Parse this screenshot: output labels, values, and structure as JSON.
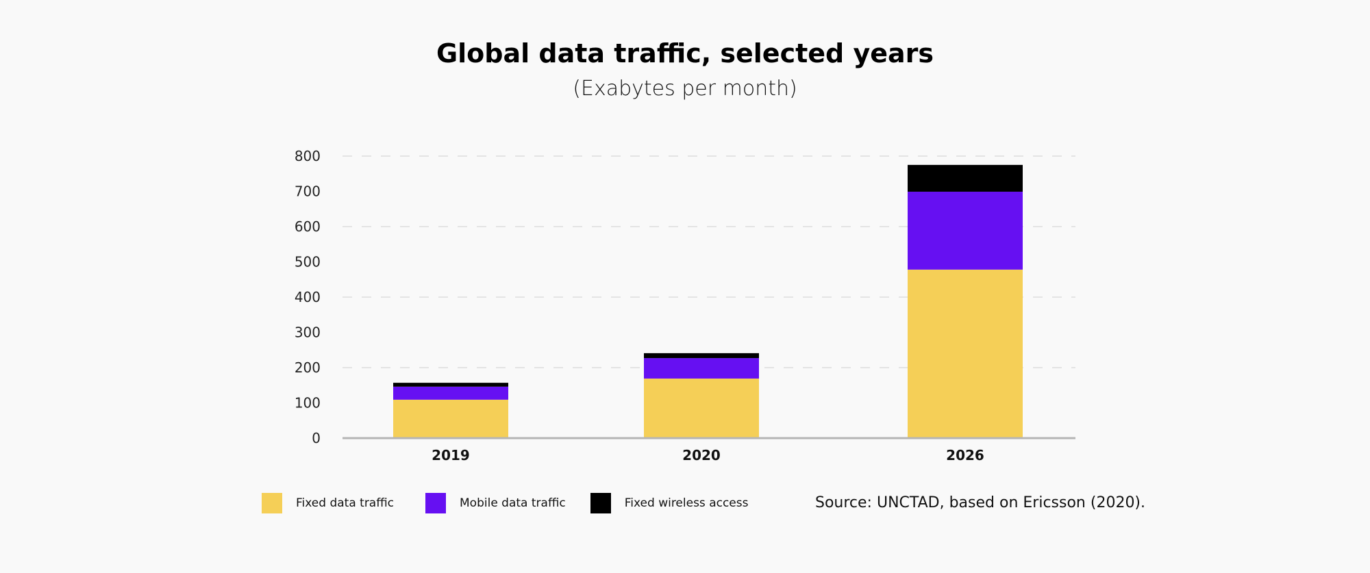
{
  "chart_data": {
    "type": "bar",
    "stacked": true,
    "title": "Global data traffic, selected years",
    "subtitle": "(Exabytes per month)",
    "xlabel": "",
    "ylabel": "",
    "categories": [
      "2019",
      "2020",
      "2026"
    ],
    "series": [
      {
        "name": "Fixed data traffic",
        "color": "#f5cf57",
        "values": [
          109,
          169,
          478
        ]
      },
      {
        "name": "Mobile data traffic",
        "color": "#6610f2",
        "values": [
          37,
          58,
          221
        ]
      },
      {
        "name": "Fixed wireless access",
        "color": "#000000",
        "values": [
          11,
          14,
          76
        ]
      }
    ],
    "ylim": [
      0,
      800
    ],
    "yticks": [
      0,
      100,
      200,
      300,
      400,
      500,
      600,
      700,
      800
    ],
    "gridlines": [
      200,
      400,
      600,
      800
    ],
    "grid": true,
    "legend_position": "bottom-left",
    "source": "Source: UNCTAD, based on Ericsson (2020)."
  }
}
